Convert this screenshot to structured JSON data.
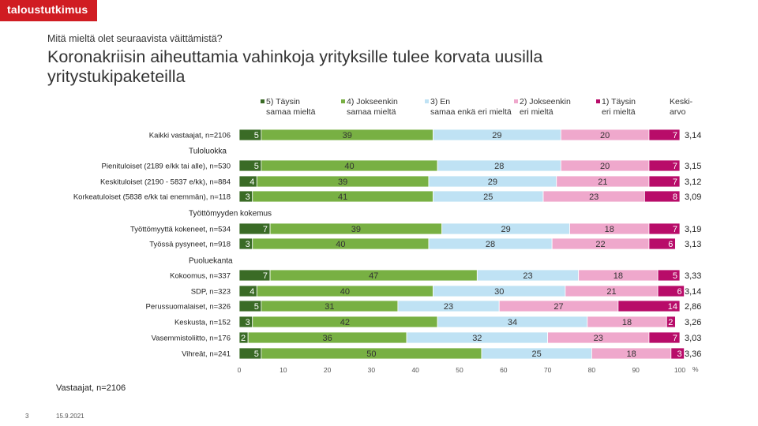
{
  "brand": "taloustutkimus",
  "question": "Mitä mieltä olet seuraavista väittämistä?",
  "title": "Koronakriisin aiheuttamia vahinkoja yrityksille tulee korvata uusilla yritystukipaketeilla",
  "footer_n": "Vastaajat, n=2106",
  "page_number": "3",
  "date": "15.9.2021",
  "colors": {
    "s5": "#3a6b26",
    "s4": "#78b043",
    "s3": "#bfe2f4",
    "s2": "#efa8cc",
    "s1": "#b80c69"
  },
  "chart_data": {
    "type": "bar",
    "orientation": "horizontal",
    "stacked": true,
    "x_axis": {
      "range": [
        0,
        100
      ],
      "ticks": [
        "0",
        "10",
        "20",
        "30",
        "40",
        "50",
        "60",
        "70",
        "80",
        "90",
        "100"
      ],
      "unit": "%"
    },
    "mean_header": "Keski-arvo",
    "series": [
      {
        "key": "s5",
        "name": "5) Täysin samaa mieltä",
        "color": "#3a6b26"
      },
      {
        "key": "s4",
        "name": "4) Jokseenkin samaa mieltä",
        "color": "#78b043"
      },
      {
        "key": "s3",
        "name": "3) En samaa enkä eri mieltä",
        "color": "#bfe2f4"
      },
      {
        "key": "s2",
        "name": "2) Jokseenkin eri mieltä",
        "color": "#efa8cc"
      },
      {
        "key": "s1",
        "name": "1) Täysin eri mieltä",
        "color": "#b80c69"
      }
    ],
    "rows": [
      {
        "kind": "bar",
        "label": "Kaikki vastaajat, n=2106",
        "values": [
          5,
          39,
          29,
          20,
          7
        ],
        "mean": "3,14"
      },
      {
        "kind": "group",
        "label": "Tuloluokka"
      },
      {
        "kind": "bar",
        "label": "Pienituloiset (2189 e/kk tai alle), n=530",
        "values": [
          5,
          40,
          28,
          20,
          7
        ],
        "mean": "3,15"
      },
      {
        "kind": "bar",
        "label": "Keskituloiset (2190 - 5837 e/kk), n=884",
        "values": [
          4,
          39,
          29,
          21,
          7
        ],
        "mean": "3,12"
      },
      {
        "kind": "bar",
        "label": "Korkeatuloiset (5838 e/kk tai enemmän), n=118",
        "values": [
          3,
          41,
          25,
          23,
          8
        ],
        "mean": "3,09"
      },
      {
        "kind": "group",
        "label": "Työttömyyden kokemus"
      },
      {
        "kind": "bar",
        "label": "Työttömyyttä kokeneet, n=534",
        "values": [
          7,
          39,
          29,
          18,
          7
        ],
        "mean": "3,19"
      },
      {
        "kind": "bar",
        "label": "Työssä pysyneet, n=918",
        "values": [
          3,
          40,
          28,
          22,
          6
        ],
        "mean": "3,13"
      },
      {
        "kind": "group",
        "label": "Puoluekanta"
      },
      {
        "kind": "bar",
        "label": "Kokoomus, n=337",
        "values": [
          7,
          47,
          23,
          18,
          5
        ],
        "mean": "3,33"
      },
      {
        "kind": "bar",
        "label": "SDP, n=323",
        "values": [
          4,
          40,
          30,
          21,
          6
        ],
        "mean": "3,14"
      },
      {
        "kind": "bar",
        "label": "Perussuomalaiset, n=326",
        "values": [
          5,
          31,
          23,
          27,
          14
        ],
        "mean": "2,86"
      },
      {
        "kind": "bar",
        "label": "Keskusta, n=152",
        "values": [
          3,
          42,
          34,
          18,
          2
        ],
        "mean": "3,26"
      },
      {
        "kind": "bar",
        "label": "Vasemmistoliitto, n=176",
        "values": [
          2,
          36,
          32,
          23,
          7
        ],
        "mean": "3,03"
      },
      {
        "kind": "bar",
        "label": "Vihreät, n=241",
        "values": [
          5,
          50,
          25,
          18,
          3
        ],
        "mean": "3,36"
      }
    ]
  }
}
